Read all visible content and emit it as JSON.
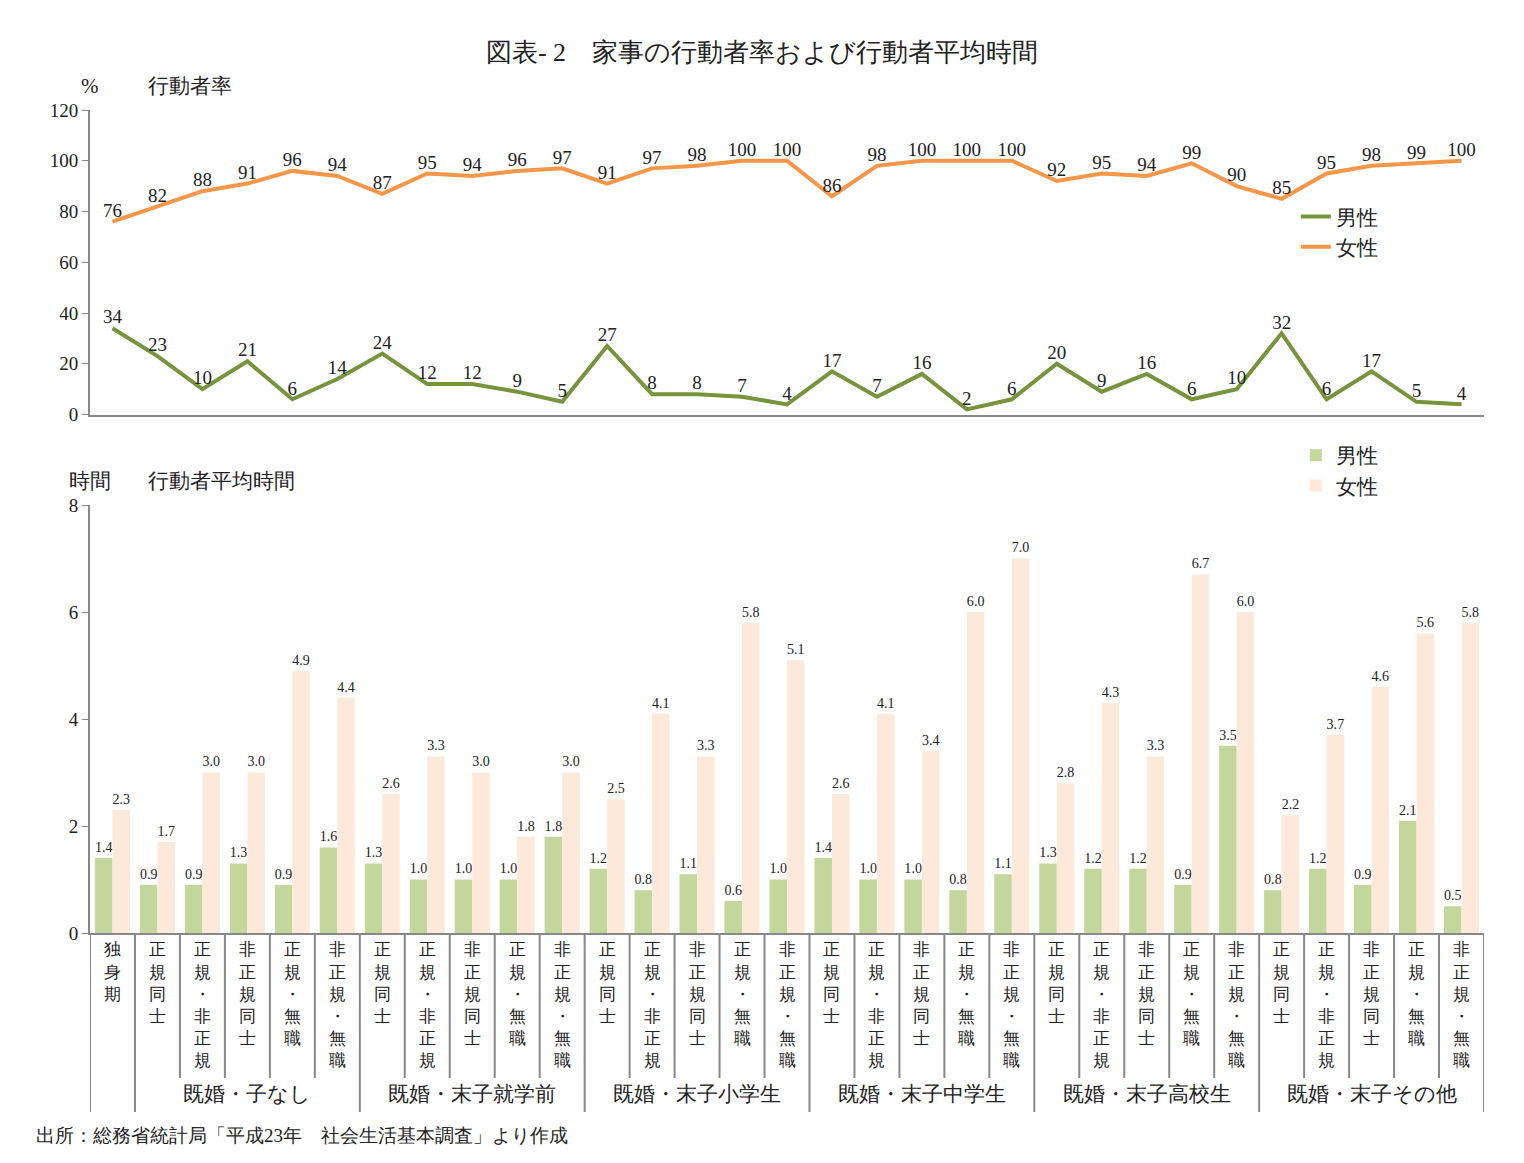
{
  "title": "図表- 2　家事の行動者率および行動者平均時間",
  "source": "出所：総務省統計局「平成23年　社会生活基本調査」より作成",
  "categories": [
    "独身期",
    "正規同士",
    "正規・非正規",
    "非正規同士",
    "正規・無職",
    "非正規・無職",
    "正規同士",
    "正規・非正規",
    "非正規同士",
    "正規・無職",
    "非正規・無職",
    "正規同士",
    "正規・非正規",
    "非正規同士",
    "正規・無職",
    "非正規・無職",
    "正規同士",
    "正規・非正規",
    "非正規同士",
    "正規・無職",
    "非正規・無職",
    "正規同士",
    "正規・非正規",
    "非正規同士",
    "正規・無職",
    "非正規・無職",
    "正規同士",
    "正規・非正規",
    "非正規同士",
    "正規・無職",
    "非正規・無職"
  ],
  "category_groups": [
    null,
    "既婚・子なし",
    "既婚・子なし",
    "既婚・子なし",
    "既婚・子なし",
    "既婚・子なし",
    "既婚・末子就学前",
    "既婚・末子就学前",
    "既婚・末子就学前",
    "既婚・末子就学前",
    "既婚・末子就学前",
    "既婚・末子小学生",
    "既婚・末子小学生",
    "既婚・末子小学生",
    "既婚・末子小学生",
    "既婚・末子小学生",
    "既婚・末子中学生",
    "既婚・末子中学生",
    "既婚・末子中学生",
    "既婚・末子中学生",
    "既婚・末子中学生",
    "既婚・末子高校生",
    "既婚・末子高校生",
    "既婚・末子高校生",
    "既婚・末子高校生",
    "既婚・末子高校生",
    "既婚・末子その他",
    "既婚・末子その他",
    "既婚・末子その他",
    "既婚・末子その他",
    "既婚・末子その他"
  ],
  "chart_data": [
    {
      "type": "line",
      "ylabel": "行動者率",
      "yunit": "%",
      "ylim": [
        0,
        120
      ],
      "yticks": [
        0,
        20,
        40,
        60,
        80,
        100,
        120
      ],
      "grid": false,
      "legend": "right",
      "data_labels": true,
      "tick_labels": "y",
      "series": [
        {
          "name": "男性",
          "color": "#77933c",
          "values": [
            34,
            23,
            10,
            21,
            6,
            14,
            24,
            12,
            12,
            9,
            5,
            27,
            8,
            8,
            7,
            4,
            17,
            7,
            16,
            2,
            6,
            20,
            9,
            16,
            6,
            10,
            32,
            6,
            17,
            5,
            4
          ]
        },
        {
          "name": "女性",
          "color": "#f79646",
          "values": [
            76,
            82,
            88,
            91,
            96,
            94,
            87,
            95,
            94,
            96,
            97,
            91,
            97,
            98,
            100,
            100,
            86,
            98,
            100,
            100,
            100,
            92,
            95,
            94,
            99,
            90,
            85,
            95,
            98,
            99,
            100
          ]
        }
      ]
    },
    {
      "type": "bar",
      "ylabel": "行動者平均時間",
      "yunit": "時間",
      "ylim": [
        0,
        8
      ],
      "yticks": [
        0,
        2,
        4,
        6,
        8
      ],
      "grid": false,
      "legend": "top right",
      "data_labels": true,
      "series": [
        {
          "name": "男性",
          "color": "#c3d69b",
          "values": [
            1.4,
            0.9,
            0.9,
            1.3,
            0.9,
            1.6,
            1.3,
            1.0,
            1.0,
            1.0,
            1.8,
            1.2,
            0.8,
            1.1,
            0.6,
            1.0,
            1.4,
            1.0,
            1.0,
            0.8,
            1.1,
            1.3,
            1.2,
            1.2,
            0.9,
            3.5,
            0.8,
            1.2,
            0.9,
            2.1,
            0.5
          ],
          "value_labels": [
            "1.4",
            "0.9",
            "0.9",
            "1.3",
            "0.9",
            "1.6",
            "1.3",
            "1.0",
            "1.0",
            "1.0",
            "1.8",
            "1.2",
            "0.8",
            "1.1",
            "0.6",
            "1.0",
            "1.4",
            "1.0",
            "1.0",
            "0.8",
            "1.1",
            "1.3",
            "1.2",
            "1.2",
            "0.9",
            "3.5",
            "0.8",
            "1.2",
            "0.9",
            "2.1",
            "0.5"
          ]
        },
        {
          "name": "女性",
          "color": "#fde9d9",
          "values": [
            2.3,
            1.7,
            3.0,
            3.0,
            4.9,
            4.4,
            2.6,
            3.3,
            3.0,
            1.8,
            3.0,
            2.5,
            4.1,
            3.3,
            5.8,
            5.1,
            2.6,
            4.1,
            3.4,
            6.0,
            7.0,
            2.8,
            4.3,
            3.3,
            6.7,
            6.0,
            2.2,
            3.7,
            4.6,
            5.6,
            5.8
          ],
          "value_labels": [
            "2.3",
            "1.7",
            "3.0",
            "3.0",
            "4.9",
            "4.4",
            "2.6",
            "3.3",
            "3.0",
            "1.8",
            "3.0",
            "2.5",
            "4.1",
            "3.3",
            "5.8",
            "5.1",
            "2.6",
            "4.1",
            "3.4",
            "6.0",
            "7.0",
            "2.8",
            "4.3",
            "3.3",
            "6.7",
            "6.0",
            "2.2",
            "3.7",
            "4.6",
            "5.6",
            "5.8"
          ]
        }
      ]
    }
  ]
}
